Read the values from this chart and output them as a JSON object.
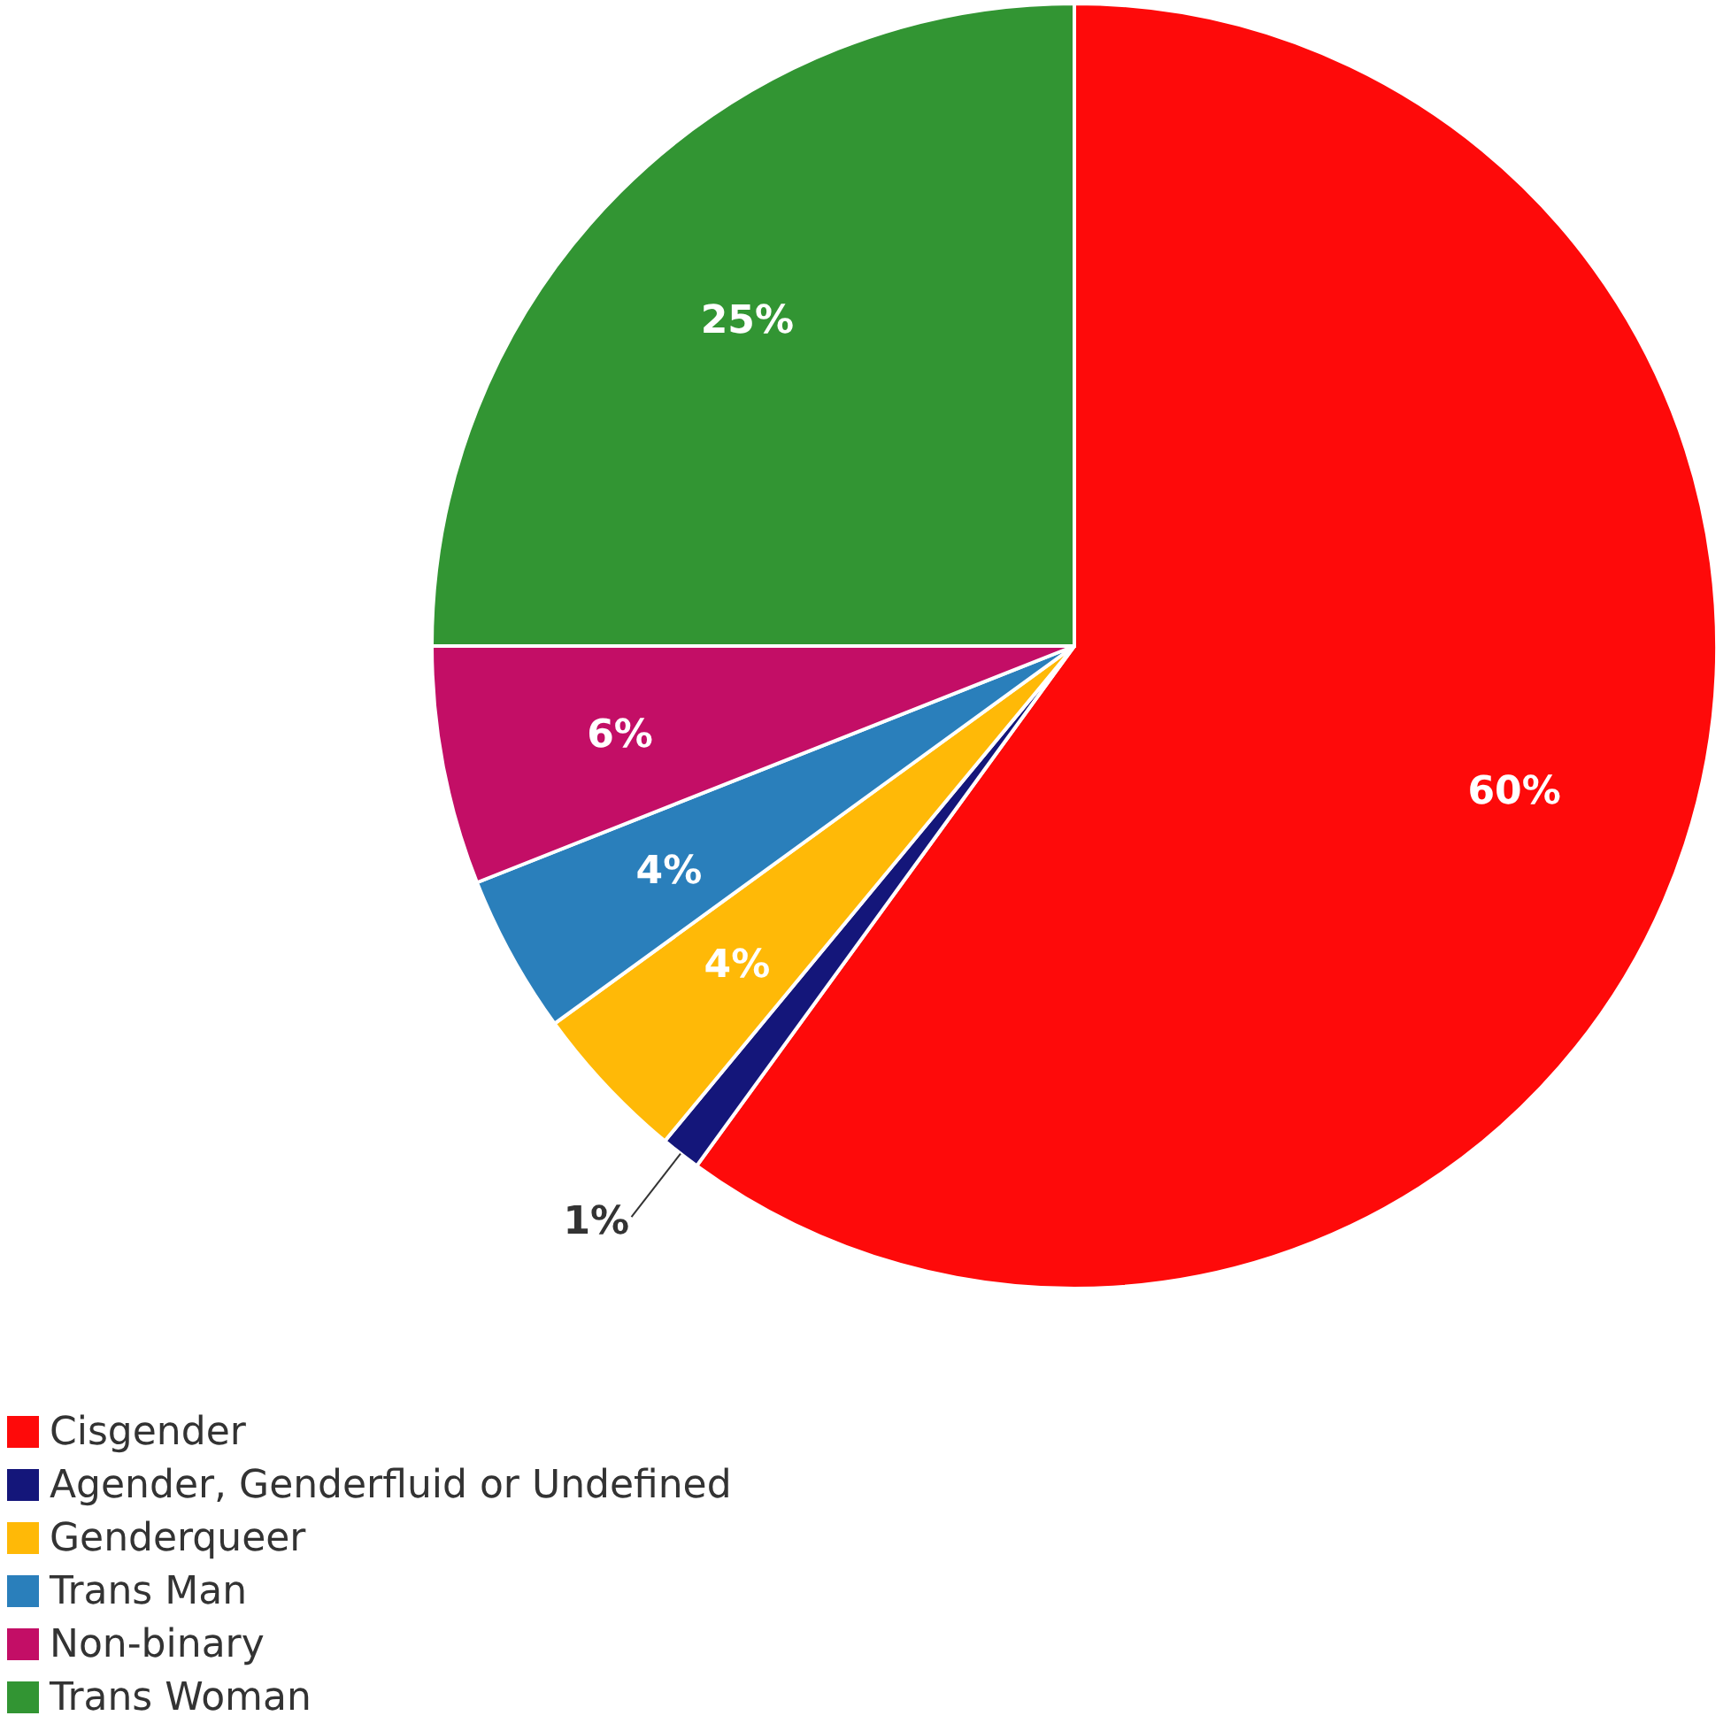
{
  "chart_data": {
    "type": "pie",
    "categories": [
      "Cisgender",
      "Agender, Genderfluid or Undefined",
      "Genderqueer",
      "Trans Man",
      "Non-binary",
      "Trans Woman"
    ],
    "values": [
      60,
      1,
      4,
      4,
      6,
      25
    ],
    "colors": [
      "#fe0a0a",
      "#14167a",
      "#ffb907",
      "#2a7fbb",
      "#c30e66",
      "#329533"
    ],
    "value_labels": [
      "60%",
      "1%",
      "4%",
      "4%",
      "6%",
      "25%"
    ],
    "legend": "bottom left"
  }
}
